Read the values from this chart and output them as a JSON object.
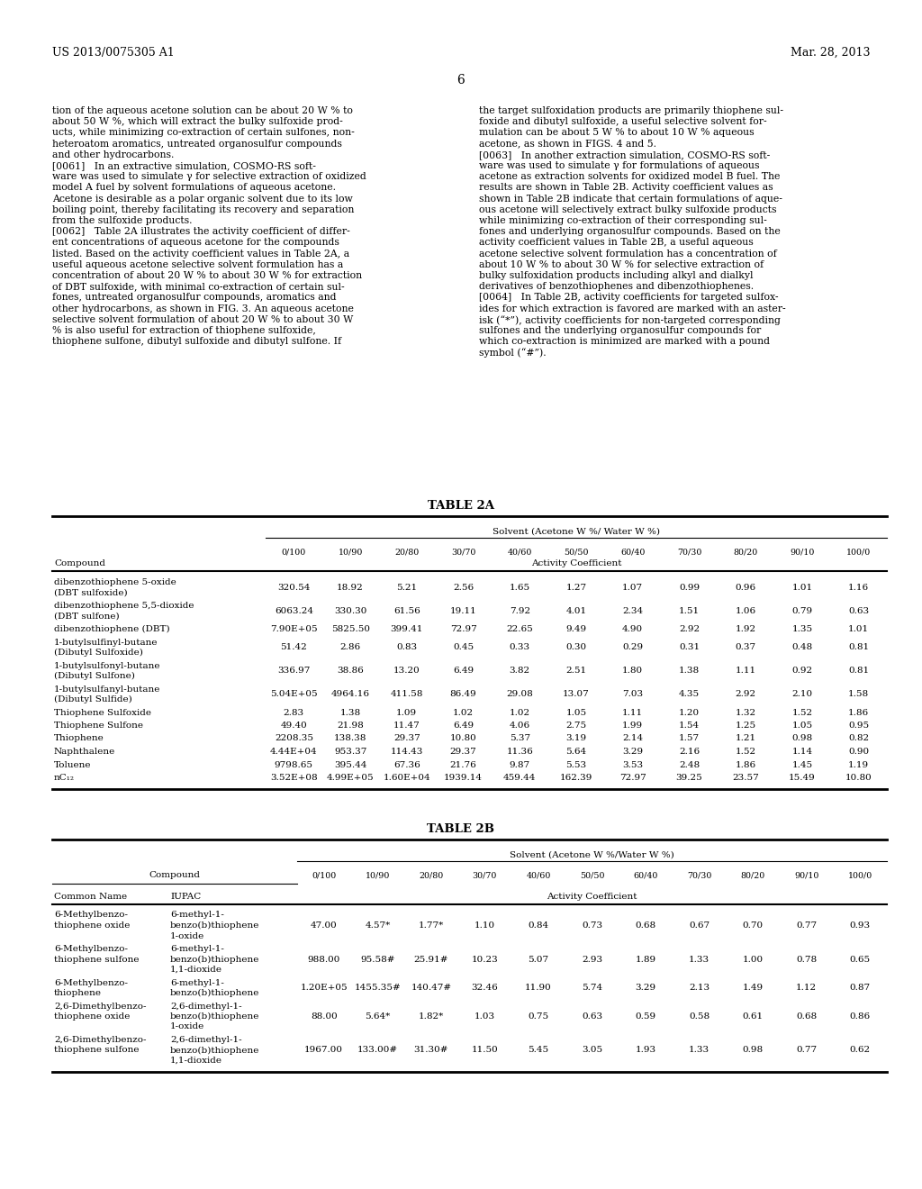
{
  "patent_number": "US 2013/0075305 A1",
  "patent_date": "Mar. 28, 2013",
  "page_number": "6",
  "left_col_lines": [
    "tion of the aqueous acetone solution can be about 20 W % to",
    "about 50 W %, which will extract the bulky sulfoxide prod-",
    "ucts, while minimizing co-extraction of certain sulfones, non-",
    "heteroatom aromatics, untreated organosulfur compounds",
    "and other hydrocarbons.",
    "[0061]   In an extractive simulation, COSMO-RS soft-",
    "ware was used to simulate γ for selective extraction of oxidized",
    "model A fuel by solvent formulations of aqueous acetone.",
    "Acetone is desirable as a polar organic solvent due to its low",
    "boiling point, thereby facilitating its recovery and separation",
    "from the sulfoxide products.",
    "[0062]   Table 2A illustrates the activity coefficient of differ-",
    "ent concentrations of aqueous acetone for the compounds",
    "listed. Based on the activity coefficient values in Table 2A, a",
    "useful aqueous acetone selective solvent formulation has a",
    "concentration of about 20 W % to about 30 W % for extraction",
    "of DBT sulfoxide, with minimal co-extraction of certain sul-",
    "fones, untreated organosulfur compounds, aromatics and",
    "other hydrocarbons, as shown in FIG. 3. An aqueous acetone",
    "selective solvent formulation of about 20 W % to about 30 W",
    "% is also useful for extraction of thiophene sulfoxide,",
    "thiophene sulfone, dibutyl sulfoxide and dibutyl sulfone. If"
  ],
  "right_col_lines": [
    "the target sulfoxidation products are primarily thiophene sul-",
    "foxide and dibutyl sulfoxide, a useful selective solvent for-",
    "mulation can be about 5 W % to about 10 W % aqueous",
    "acetone, as shown in FIGS. 4 and 5.",
    "[0063]   In another extraction simulation, COSMO-RS soft-",
    "ware was used to simulate γ for formulations of aqueous",
    "acetone as extraction solvents for oxidized model B fuel. The",
    "results are shown in Table 2B. Activity coefficient values as",
    "shown in Table 2B indicate that certain formulations of aque-",
    "ous acetone will selectively extract bulky sulfoxide products",
    "while minimizing co-extraction of their corresponding sul-",
    "fones and underlying organosulfur compounds. Based on the",
    "activity coefficient values in Table 2B, a useful aqueous",
    "acetone selective solvent formulation has a concentration of",
    "about 10 W % to about 30 W % for selective extraction of",
    "bulky sulfoxidation products including alkyl and dialkyl",
    "derivatives of benzothiophenes and dibenzothiophenes.",
    "[0064]   In Table 2B, activity coefficients for targeted sulfox-",
    "ides for which extraction is favored are marked with an aster-",
    "isk (“*”), activity coefficients for non-targeted corresponding",
    "sulfones and the underlying organosulfur compounds for",
    "which co-extraction is minimized are marked with a pound",
    "symbol (“#”)."
  ],
  "table2a_title": "TABLE 2A",
  "table2a_solvent_header": "Solvent (Acetone W %/ Water W %)",
  "table2a_col_headers": [
    "0/100",
    "10/90",
    "20/80",
    "30/70",
    "40/60",
    "50/50",
    "60/40",
    "70/30",
    "80/20",
    "90/10",
    "100/0"
  ],
  "table2a_compound_label": "Compound",
  "table2a_activity_label": "Activity Coefficient",
  "table2a_rows": [
    [
      "dibenzothiophene 5-oxide",
      "(DBT sulfoxide)",
      "320.54",
      "18.92",
      "5.21",
      "2.56",
      "1.65",
      "1.27",
      "1.07",
      "0.99",
      "0.96",
      "1.01",
      "1.16"
    ],
    [
      "dibenzothiophene 5,5-dioxide",
      "(DBT sulfone)",
      "6063.24",
      "330.30",
      "61.56",
      "19.11",
      "7.92",
      "4.01",
      "2.34",
      "1.51",
      "1.06",
      "0.79",
      "0.63"
    ],
    [
      "dibenzothiophene (DBT)",
      "",
      "7.90E+05",
      "5825.50",
      "399.41",
      "72.97",
      "22.65",
      "9.49",
      "4.90",
      "2.92",
      "1.92",
      "1.35",
      "1.01"
    ],
    [
      "1-butylsulfinyl-butane",
      "(Dibutyl Sulfoxide)",
      "51.42",
      "2.86",
      "0.83",
      "0.45",
      "0.33",
      "0.30",
      "0.29",
      "0.31",
      "0.37",
      "0.48",
      "0.81"
    ],
    [
      "1-butylsulfonyl-butane",
      "(Dibutyl Sulfone)",
      "336.97",
      "38.86",
      "13.20",
      "6.49",
      "3.82",
      "2.51",
      "1.80",
      "1.38",
      "1.11",
      "0.92",
      "0.81"
    ],
    [
      "1-butylsulfanyl-butane",
      "(Dibutyl Sulfide)",
      "5.04E+05",
      "4964.16",
      "411.58",
      "86.49",
      "29.08",
      "13.07",
      "7.03",
      "4.35",
      "2.92",
      "2.10",
      "1.58"
    ],
    [
      "Thiophene Sulfoxide",
      "",
      "2.83",
      "1.38",
      "1.09",
      "1.02",
      "1.02",
      "1.05",
      "1.11",
      "1.20",
      "1.32",
      "1.52",
      "1.86"
    ],
    [
      "Thiophene Sulfone",
      "",
      "49.40",
      "21.98",
      "11.47",
      "6.49",
      "4.06",
      "2.75",
      "1.99",
      "1.54",
      "1.25",
      "1.05",
      "0.95"
    ],
    [
      "Thiophene",
      "",
      "2208.35",
      "138.38",
      "29.37",
      "10.80",
      "5.37",
      "3.19",
      "2.14",
      "1.57",
      "1.21",
      "0.98",
      "0.82"
    ],
    [
      "Naphthalene",
      "",
      "4.44E+04",
      "953.37",
      "114.43",
      "29.37",
      "11.36",
      "5.64",
      "3.29",
      "2.16",
      "1.52",
      "1.14",
      "0.90"
    ],
    [
      "Toluene",
      "",
      "9798.65",
      "395.44",
      "67.36",
      "21.76",
      "9.87",
      "5.53",
      "3.53",
      "2.48",
      "1.86",
      "1.45",
      "1.19"
    ],
    [
      "nC₁₂",
      "",
      "3.52E+08",
      "4.99E+05",
      "1.60E+04",
      "1939.14",
      "459.44",
      "162.39",
      "72.97",
      "39.25",
      "23.57",
      "15.49",
      "10.80"
    ]
  ],
  "table2b_title": "TABLE 2B",
  "table2b_solvent_header": "Solvent (Acetone W %/Water W %)",
  "table2b_col_headers": [
    "0/100",
    "10/90",
    "20/80",
    "30/70",
    "40/60",
    "50/50",
    "60/40",
    "70/30",
    "80/20",
    "90/10",
    "100/0"
  ],
  "table2b_compound_label": "Compound",
  "table2b_common_label": "Common Name",
  "table2b_iupac_label": "IUPAC",
  "table2b_activity_label": "Activity Coefficient",
  "table2b_rows": [
    [
      "6-Methylbenzo-",
      "thiophene oxide",
      "6-methyl-1-",
      "benzo(b)thiophene",
      "1-oxide",
      "47.00",
      "4.57*",
      "1.77*",
      "1.10",
      "0.84",
      "0.73",
      "0.68",
      "0.67",
      "0.70",
      "0.77",
      "0.93"
    ],
    [
      "6-Methylbenzo-",
      "thiophene sulfone",
      "6-methyl-1-",
      "benzo(b)thiophene",
      "1,1-dioxide",
      "988.00",
      "95.58#",
      "25.91#",
      "10.23",
      "5.07",
      "2.93",
      "1.89",
      "1.33",
      "1.00",
      "0.78",
      "0.65"
    ],
    [
      "6-Methylbenzo-",
      "thiophene",
      "6-methyl-1-",
      "benzo(b)thiophene",
      "",
      "1.20E+05",
      "1455.35#",
      "140.47#",
      "32.46",
      "11.90",
      "5.74",
      "3.29",
      "2.13",
      "1.49",
      "1.12",
      "0.87"
    ],
    [
      "2,6-Dimethylbenzo-",
      "thiophene oxide",
      "2,6-dimethyl-1-",
      "benzo(b)thiophene",
      "1-oxide",
      "88.00",
      "5.64*",
      "1.82*",
      "1.03",
      "0.75",
      "0.63",
      "0.59",
      "0.58",
      "0.61",
      "0.68",
      "0.86"
    ],
    [
      "2,6-Dimethylbenzo-",
      "thiophene sulfone",
      "2,6-dimethyl-1-",
      "benzo(b)thiophene",
      "1,1-dioxide",
      "1967.00",
      "133.00#",
      "31.30#",
      "11.50",
      "5.45",
      "3.05",
      "1.93",
      "1.33",
      "0.98",
      "0.77",
      "0.62"
    ]
  ]
}
